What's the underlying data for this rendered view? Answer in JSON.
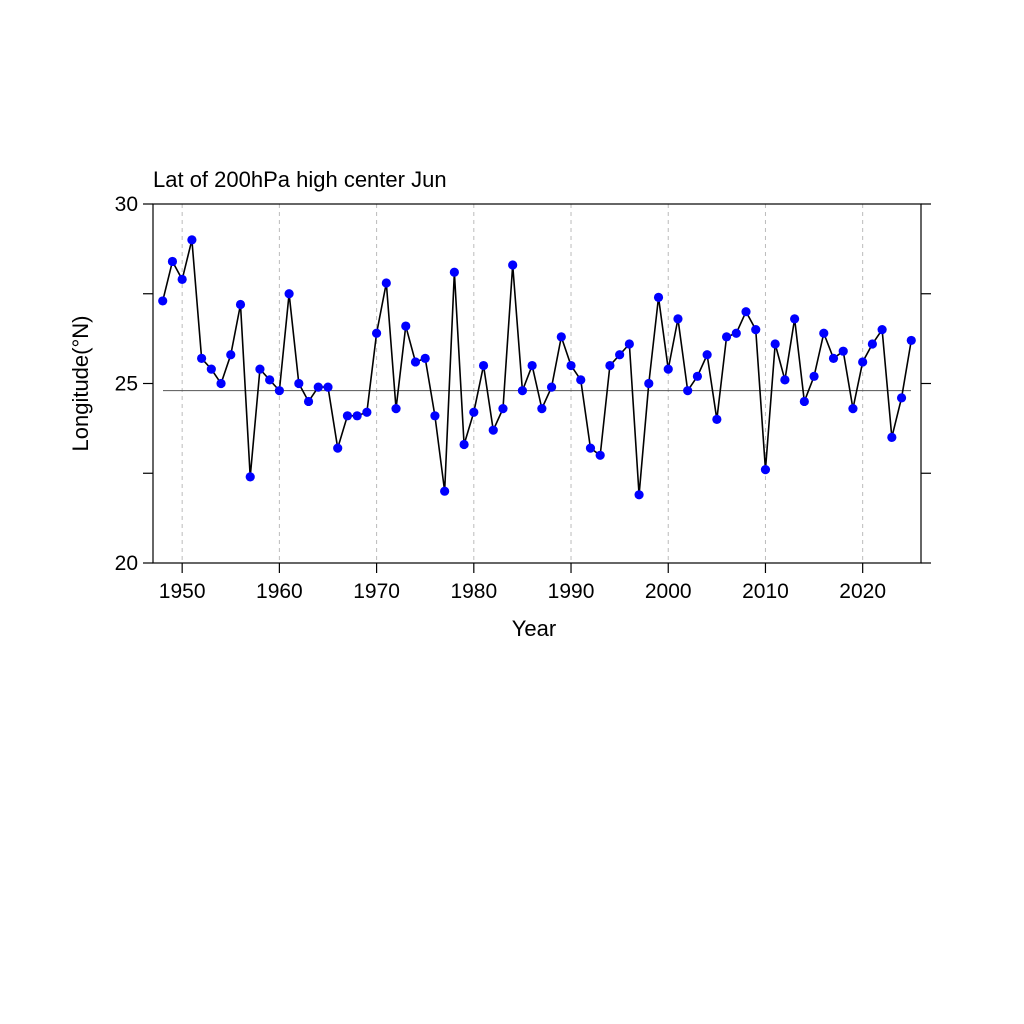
{
  "chart_data": {
    "type": "line",
    "title": "Lat of 200hPa high center Jun",
    "xlabel": "Year",
    "ylabel": "Longitude(°N)",
    "xlim": [
      1947,
      2026
    ],
    "ylim": [
      20,
      30
    ],
    "x_ticks": [
      1950,
      1960,
      1970,
      1980,
      1990,
      2000,
      2010,
      2020
    ],
    "y_ticks": [
      20,
      25,
      30
    ],
    "y_minor_ticks": [
      22.5,
      27.5
    ],
    "reference_line": 24.8,
    "x_grid": "dashed vertical at major ticks",
    "colors": {
      "line": "#000000",
      "marker": "#0000ff",
      "reference": "#555555",
      "grid": "#bbbbbb"
    },
    "series": [
      {
        "x": [
          1948,
          1949,
          1950,
          1951,
          1952,
          1953,
          1954,
          1955,
          1956,
          1957,
          1958,
          1959,
          1960,
          1961,
          1962,
          1963,
          1964,
          1965,
          1966,
          1967,
          1968,
          1969,
          1970,
          1971,
          1972,
          1973,
          1974,
          1975,
          1976,
          1977,
          1978,
          1979,
          1980,
          1981,
          1982,
          1983,
          1984,
          1985,
          1986,
          1987,
          1988,
          1989,
          1990,
          1991,
          1992,
          1993,
          1994,
          1995,
          1996,
          1997,
          1998,
          1999,
          2000,
          2001,
          2002,
          2003,
          2004,
          2005,
          2006,
          2007,
          2008,
          2009,
          2010,
          2011,
          2012,
          2013,
          2014,
          2015,
          2016,
          2017,
          2018,
          2019,
          2020,
          2021,
          2022,
          2023,
          2024,
          2025
        ],
        "values": [
          27.3,
          28.4,
          27.9,
          29.0,
          25.7,
          25.4,
          25.0,
          25.8,
          27.2,
          22.4,
          25.4,
          25.1,
          24.8,
          27.5,
          25.0,
          24.5,
          24.9,
          24.9,
          23.2,
          24.1,
          24.1,
          24.2,
          26.4,
          27.8,
          24.3,
          26.6,
          25.6,
          25.7,
          24.1,
          22.0,
          28.1,
          23.3,
          24.2,
          25.5,
          23.7,
          24.3,
          28.3,
          24.8,
          25.5,
          24.3,
          24.9,
          26.3,
          25.5,
          25.1,
          23.2,
          23.0,
          25.5,
          25.8,
          26.1,
          21.9,
          25.0,
          27.4,
          25.4,
          26.8,
          24.8,
          25.2,
          25.8,
          24.0,
          26.3,
          26.4,
          27.0,
          26.5,
          22.6,
          26.1,
          25.1,
          26.8,
          24.5,
          25.2,
          26.4,
          25.7,
          25.9,
          24.3,
          25.6,
          26.1,
          26.5,
          23.5,
          24.6,
          26.2
        ]
      }
    ]
  }
}
